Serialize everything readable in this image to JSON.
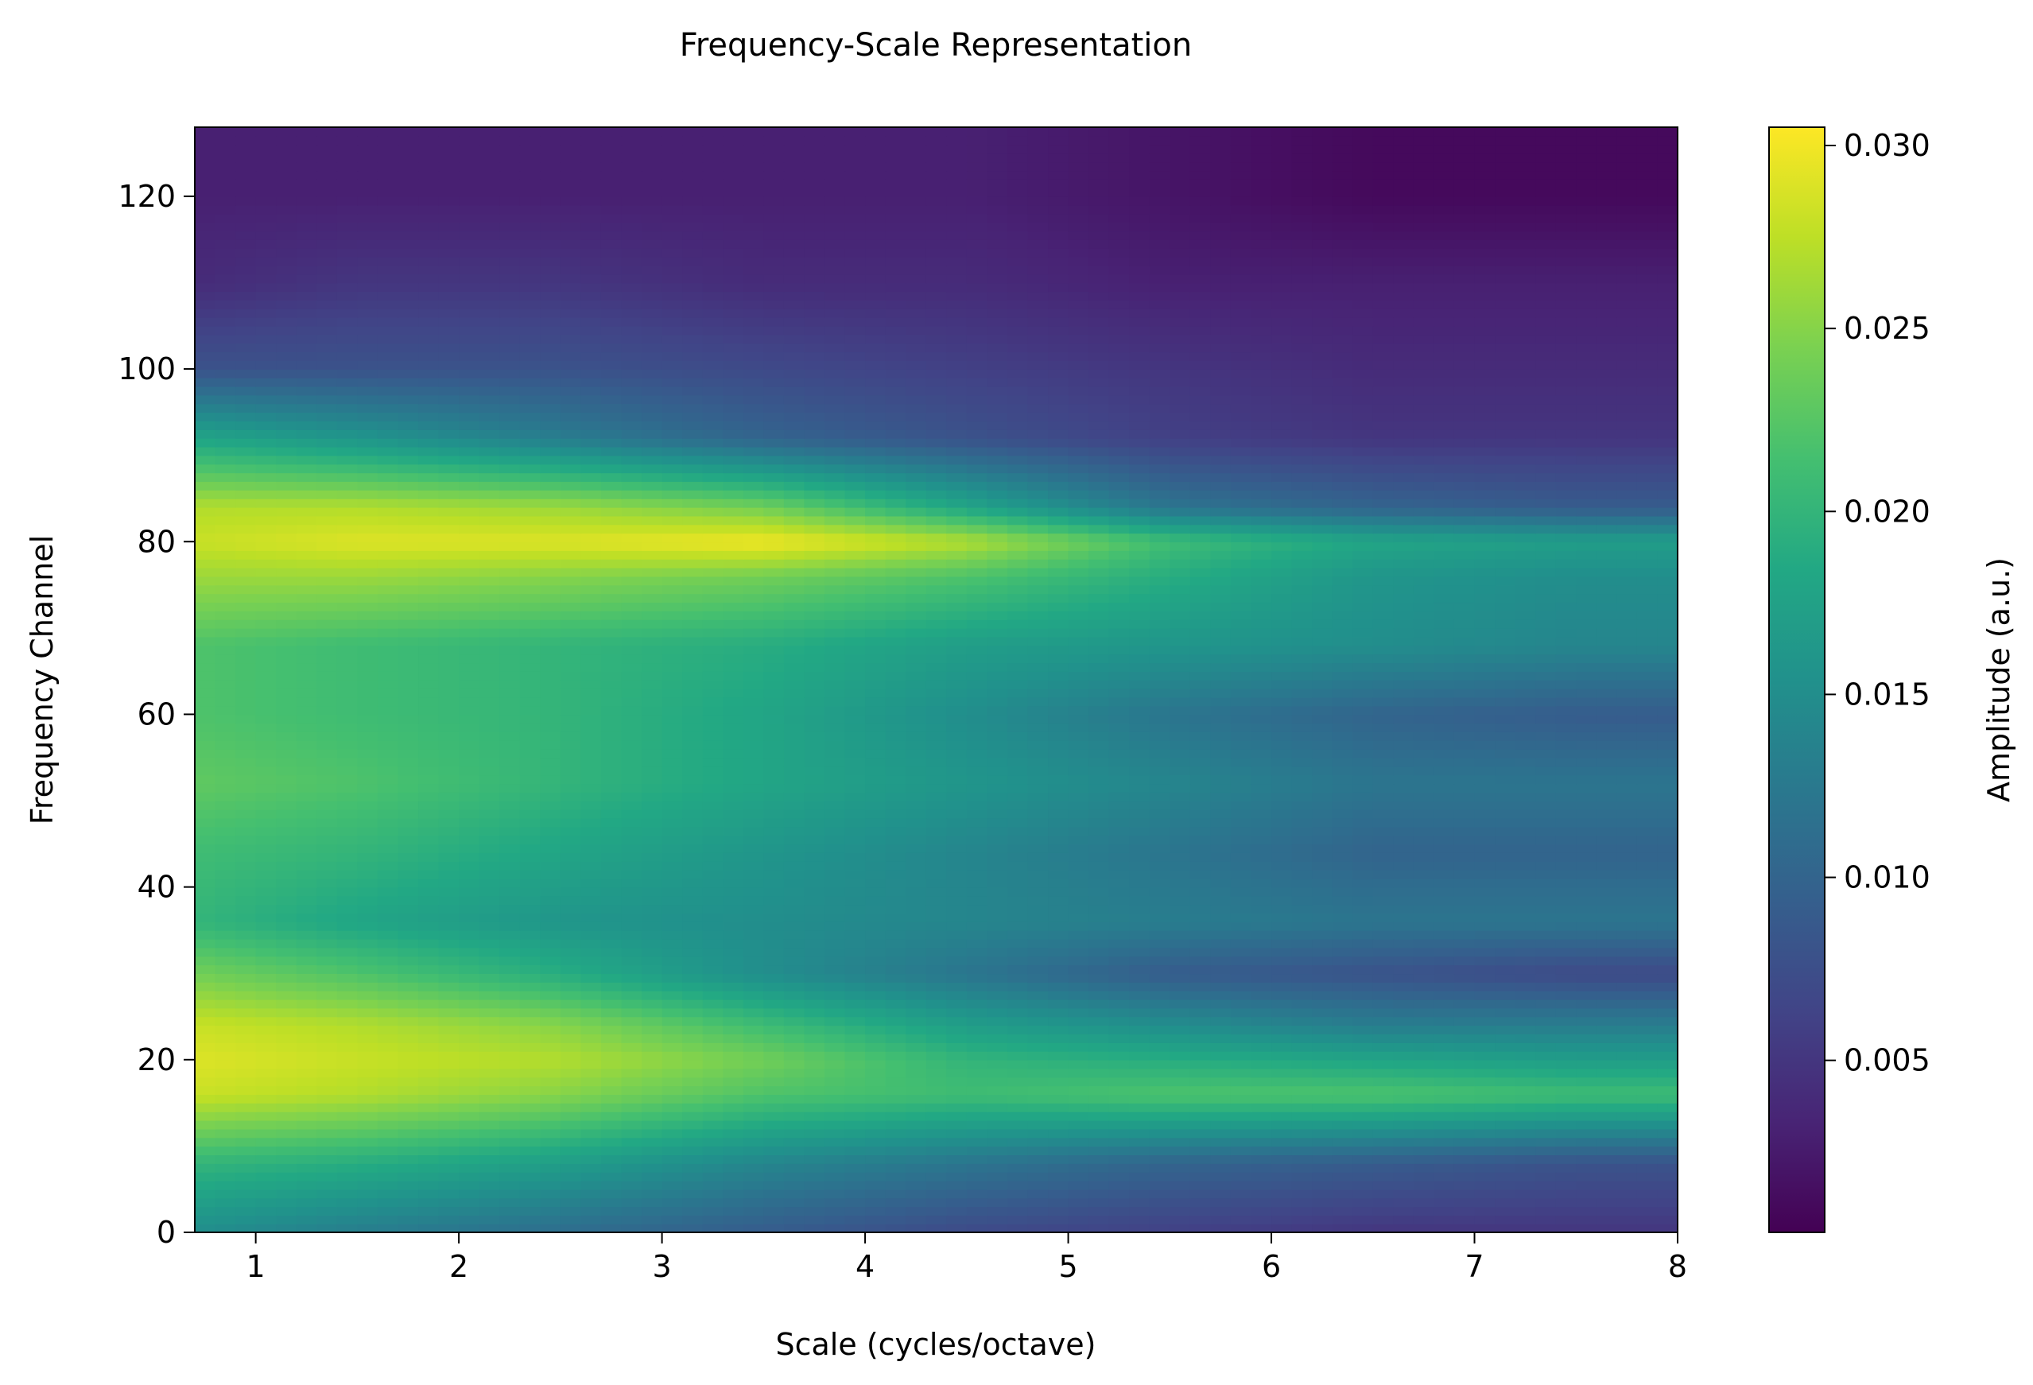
{
  "chart_data": {
    "type": "heatmap",
    "title": "Frequency-Scale Representation",
    "xlabel": "Scale (cycles/octave)",
    "ylabel": "Frequency Channel",
    "xlim": [
      0.7,
      8
    ],
    "ylim": [
      0,
      128
    ],
    "xticks": [
      1,
      2,
      3,
      4,
      5,
      6,
      7,
      8
    ],
    "yticks": [
      0,
      20,
      40,
      60,
      80,
      100,
      120
    ],
    "colormap": "viridis",
    "colorbar": {
      "label": "Amplitude (a.u.)",
      "range": [
        0.0003,
        0.0305
      ],
      "ticks": [
        0.005,
        0.01,
        0.015,
        0.02,
        0.025,
        0.03
      ],
      "tick_labels": [
        "0.005",
        "0.010",
        "0.015",
        "0.020",
        "0.025",
        "0.030"
      ]
    },
    "grid_scales": [
      0.7,
      1.5,
      2.5,
      3.5,
      4.5,
      5.5,
      6.5,
      7.5,
      8.0
    ],
    "grid_channels": [
      0,
      8,
      16,
      20,
      24,
      30,
      36,
      44,
      52,
      60,
      68,
      76,
      80,
      84,
      92,
      100,
      110,
      120,
      128
    ],
    "values": [
      [
        0.015,
        0.013,
        0.011,
        0.009,
        0.007,
        0.006,
        0.005,
        0.005,
        0.005
      ],
      [
        0.02,
        0.019,
        0.017,
        0.014,
        0.012,
        0.01,
        0.009,
        0.008,
        0.008
      ],
      [
        0.028,
        0.027,
        0.025,
        0.022,
        0.021,
        0.022,
        0.022,
        0.021,
        0.021
      ],
      [
        0.029,
        0.028,
        0.027,
        0.024,
        0.02,
        0.019,
        0.018,
        0.017,
        0.017
      ],
      [
        0.028,
        0.027,
        0.025,
        0.021,
        0.017,
        0.015,
        0.013,
        0.013,
        0.013
      ],
      [
        0.024,
        0.022,
        0.019,
        0.015,
        0.012,
        0.009,
        0.008,
        0.007,
        0.007
      ],
      [
        0.02,
        0.018,
        0.016,
        0.015,
        0.014,
        0.013,
        0.012,
        0.012,
        0.012
      ],
      [
        0.021,
        0.02,
        0.018,
        0.016,
        0.014,
        0.012,
        0.01,
        0.01,
        0.01
      ],
      [
        0.023,
        0.022,
        0.02,
        0.018,
        0.016,
        0.014,
        0.012,
        0.012,
        0.012
      ],
      [
        0.022,
        0.021,
        0.02,
        0.018,
        0.015,
        0.012,
        0.01,
        0.009,
        0.009
      ],
      [
        0.022,
        0.021,
        0.02,
        0.019,
        0.017,
        0.016,
        0.015,
        0.014,
        0.014
      ],
      [
        0.026,
        0.026,
        0.025,
        0.024,
        0.022,
        0.019,
        0.016,
        0.015,
        0.015
      ],
      [
        0.028,
        0.029,
        0.029,
        0.03,
        0.027,
        0.021,
        0.018,
        0.017,
        0.017
      ],
      [
        0.027,
        0.027,
        0.026,
        0.024,
        0.018,
        0.012,
        0.01,
        0.009,
        0.009
      ],
      [
        0.018,
        0.016,
        0.013,
        0.01,
        0.008,
        0.006,
        0.005,
        0.005,
        0.005
      ],
      [
        0.008,
        0.008,
        0.008,
        0.007,
        0.006,
        0.005,
        0.004,
        0.004,
        0.004
      ],
      [
        0.004,
        0.005,
        0.005,
        0.004,
        0.004,
        0.003,
        0.003,
        0.003,
        0.003
      ],
      [
        0.003,
        0.003,
        0.003,
        0.003,
        0.003,
        0.002,
        0.001,
        0.001,
        0.001
      ],
      [
        0.003,
        0.003,
        0.003,
        0.003,
        0.003,
        0.002,
        0.001,
        0.001,
        0.001
      ]
    ]
  }
}
